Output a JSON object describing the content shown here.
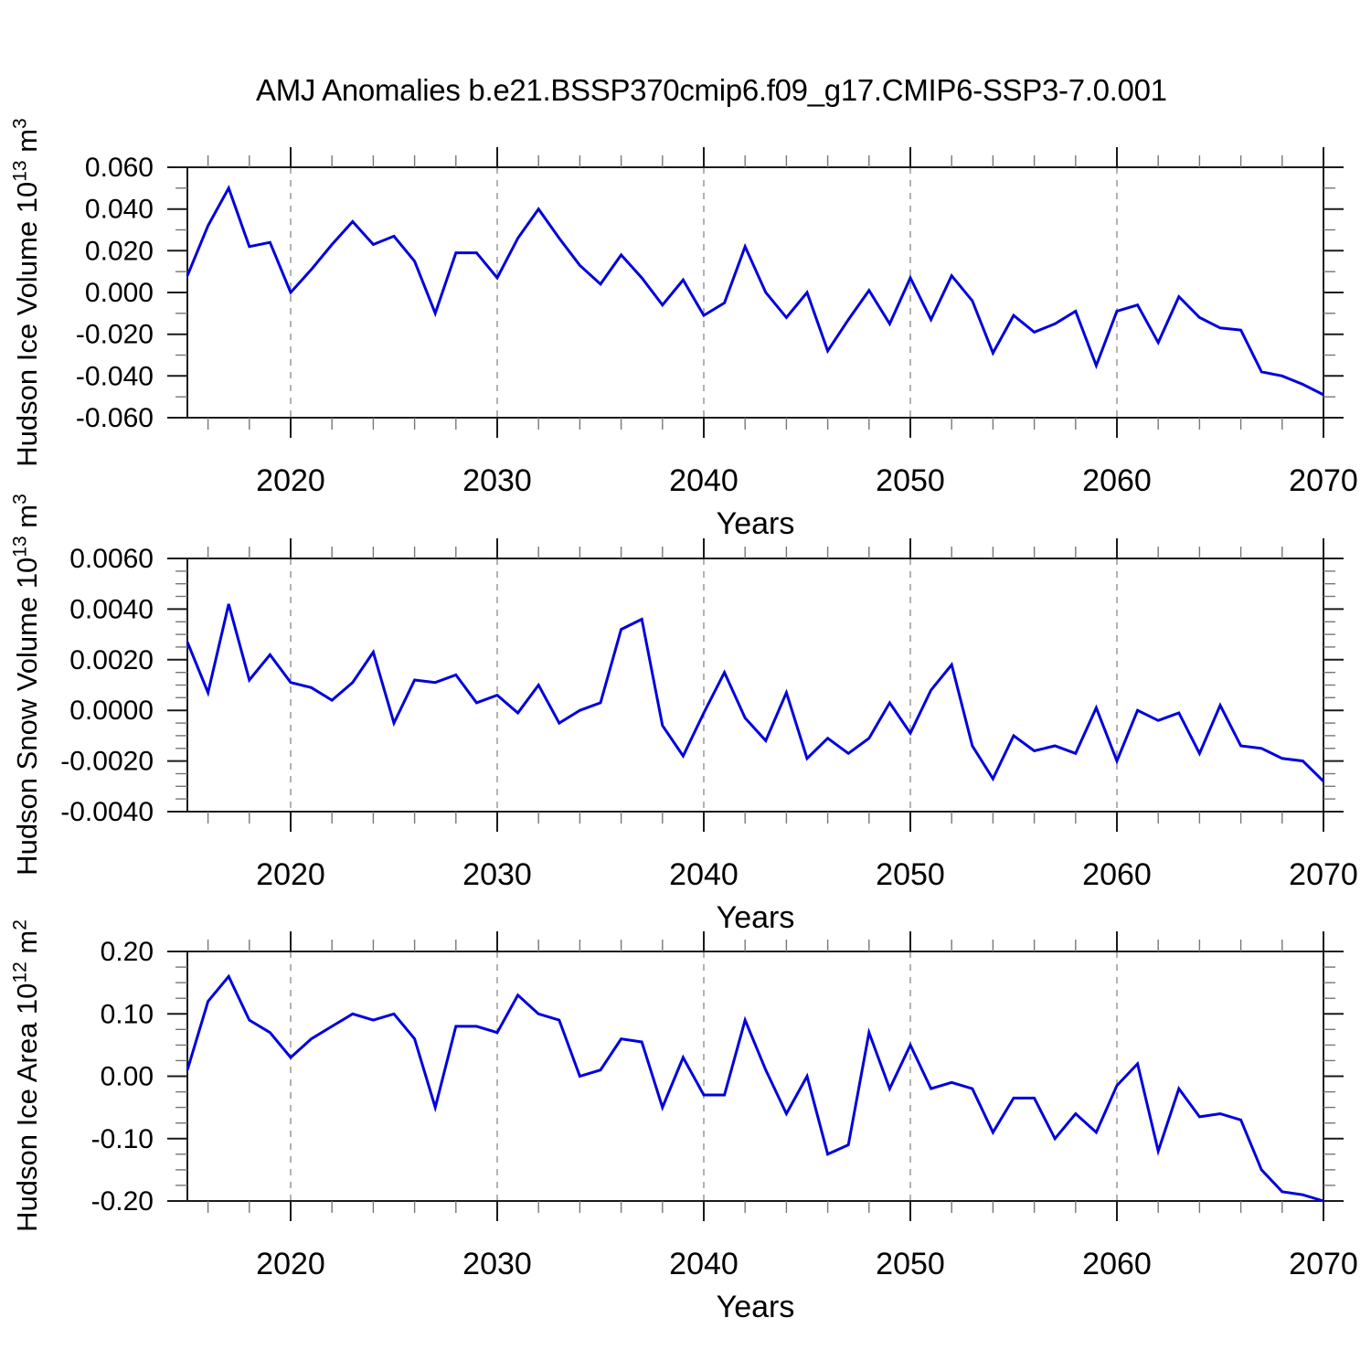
{
  "title": "AMJ Anomalies b.e21.BSSP370cmip6.f09_g17.CMIP6-SSP3-7.0.001",
  "style": {
    "line_color": "#0000dd",
    "grid_color": "#999999"
  },
  "chart_data": [
    {
      "type": "line",
      "name": "hudson-ice-volume",
      "xlabel": "Years",
      "ylabel": "Hudson Ice Volume 10^13 m^3",
      "ylabel_parts": {
        "base": "Hudson Ice Volume 10",
        "exp": "13",
        "unit": " m",
        "unit_exp": "3"
      },
      "x_start": 2015,
      "xlim": [
        2015,
        2070
      ],
      "ylim": [
        -0.06,
        0.06
      ],
      "xticks_labeled": [
        2020,
        2030,
        2040,
        2050,
        2060,
        2070
      ],
      "xticklabels": [
        "2020",
        "2030",
        "2040",
        "2050",
        "2060",
        "2070"
      ],
      "x_minor_step": 2,
      "yticks_labeled": [
        0.06,
        0.04,
        0.02,
        0,
        -0.02,
        -0.04,
        -0.06
      ],
      "yticklabels": [
        "0.060",
        "0.040",
        "0.020",
        "0.000",
        "-0.020",
        "-0.040",
        "-0.060"
      ],
      "y_minor_step": 0.01,
      "grid_x": [
        2020,
        2030,
        2040,
        2050,
        2060
      ],
      "values": [
        0.008,
        0.032,
        0.05,
        0.022,
        0.024,
        0.0,
        0.011,
        0.023,
        0.034,
        0.023,
        0.027,
        0.015,
        -0.01,
        0.019,
        0.019,
        0.007,
        0.026,
        0.04,
        0.026,
        0.013,
        0.004,
        0.018,
        0.007,
        -0.006,
        0.006,
        -0.011,
        -0.005,
        0.022,
        0.0,
        -0.012,
        0.0,
        -0.028,
        -0.013,
        0.001,
        -0.015,
        0.007,
        -0.013,
        0.008,
        -0.004,
        -0.029,
        -0.011,
        -0.019,
        -0.015,
        -0.009,
        -0.035,
        -0.009,
        -0.006,
        -0.024,
        -0.002,
        -0.012,
        -0.017,
        -0.018,
        -0.038,
        -0.04,
        -0.044,
        -0.049
      ]
    },
    {
      "type": "line",
      "name": "hudson-snow-volume",
      "xlabel": "Years",
      "ylabel": "Hudson Snow Volume 10^13 m^3",
      "ylabel_parts": {
        "base": "Hudson Snow Volume 10",
        "exp": "13",
        "unit": " m",
        "unit_exp": "3"
      },
      "x_start": 2015,
      "xlim": [
        2015,
        2070
      ],
      "ylim": [
        -0.004,
        0.006
      ],
      "xticks_labeled": [
        2020,
        2030,
        2040,
        2050,
        2060,
        2070
      ],
      "xticklabels": [
        "2020",
        "2030",
        "2040",
        "2050",
        "2060",
        "2070"
      ],
      "x_minor_step": 2,
      "yticks_labeled": [
        0.006,
        0.004,
        0.002,
        0,
        -0.002,
        -0.004
      ],
      "yticklabels": [
        "0.0060",
        "0.0040",
        "0.0020",
        "0.0000",
        "-0.0020",
        "-0.0040"
      ],
      "y_minor_step": 0.0005,
      "grid_x": [
        2020,
        2030,
        2040,
        2050,
        2060
      ],
      "values": [
        0.0027,
        0.0007,
        0.0042,
        0.0012,
        0.0022,
        0.0011,
        0.0009,
        0.0004,
        0.0011,
        0.0023,
        -0.0005,
        0.0012,
        0.0011,
        0.0014,
        0.0003,
        0.0006,
        -0.0001,
        0.001,
        -0.0005,
        0.0,
        0.0003,
        0.0032,
        0.0036,
        -0.0006,
        -0.0018,
        -0.0001,
        0.0015,
        -0.0003,
        -0.0012,
        0.0007,
        -0.0019,
        -0.0011,
        -0.0017,
        -0.0011,
        0.0003,
        -0.0009,
        0.0008,
        0.0018,
        -0.0014,
        -0.0027,
        -0.001,
        -0.0016,
        -0.0014,
        -0.0017,
        0.0001,
        -0.002,
        0.0,
        -0.0004,
        -0.0001,
        -0.0017,
        0.0002,
        -0.0014,
        -0.0015,
        -0.0019,
        -0.002,
        -0.0028
      ]
    },
    {
      "type": "line",
      "name": "hudson-ice-area",
      "xlabel": "Years",
      "ylabel": "Hudson Ice Area 10^12 m^2",
      "ylabel_parts": {
        "base": "Hudson Ice Area 10",
        "exp": "12",
        "unit": " m",
        "unit_exp": "2"
      },
      "x_start": 2015,
      "xlim": [
        2015,
        2070
      ],
      "ylim": [
        -0.2,
        0.2
      ],
      "xticks_labeled": [
        2020,
        2030,
        2040,
        2050,
        2060,
        2070
      ],
      "xticklabels": [
        "2020",
        "2030",
        "2040",
        "2050",
        "2060",
        "2070"
      ],
      "x_minor_step": 2,
      "yticks_labeled": [
        0.2,
        0.1,
        0,
        -0.1,
        -0.2
      ],
      "yticklabels": [
        "0.20",
        "0.10",
        "0.00",
        "-0.10",
        "-0.20"
      ],
      "y_minor_step": 0.025,
      "grid_x": [
        2020,
        2030,
        2040,
        2050,
        2060
      ],
      "values": [
        0.01,
        0.12,
        0.16,
        0.09,
        0.07,
        0.03,
        0.06,
        0.08,
        0.1,
        0.09,
        0.1,
        0.06,
        -0.05,
        0.08,
        0.08,
        0.07,
        0.13,
        0.1,
        0.09,
        0.0,
        0.01,
        0.06,
        0.055,
        -0.05,
        0.03,
        -0.03,
        -0.03,
        0.09,
        0.01,
        -0.06,
        0.0,
        -0.125,
        -0.11,
        0.07,
        -0.02,
        0.05,
        -0.02,
        -0.01,
        -0.02,
        -0.09,
        -0.035,
        -0.035,
        -0.1,
        -0.06,
        -0.09,
        -0.015,
        0.02,
        -0.12,
        -0.02,
        -0.065,
        -0.06,
        -0.07,
        -0.15,
        -0.185,
        -0.19,
        -0.2
      ]
    }
  ]
}
